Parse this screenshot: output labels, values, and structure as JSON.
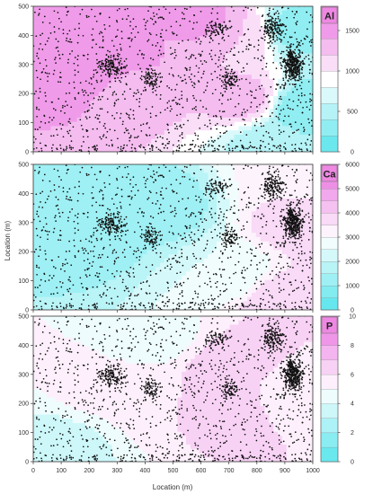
{
  "figure": {
    "ylabel": "Location (m)",
    "xlabel": "Location (m)"
  },
  "chart_data": [
    {
      "type": "heatmap",
      "element": "Al",
      "xlim": [
        0,
        1000
      ],
      "ylim": [
        0,
        500
      ],
      "x_ticks": [
        0,
        100,
        200,
        300,
        400,
        500,
        600,
        700,
        800,
        900,
        1000
      ],
      "y_ticks": [
        0,
        100,
        200,
        300,
        400,
        500
      ],
      "colorbar": {
        "range": [
          0,
          1800
        ],
        "ticks": [
          0,
          500,
          1000,
          1500
        ],
        "levels": [
          0,
          200,
          400,
          600,
          800,
          1000,
          1200,
          1400,
          1600,
          1800
        ]
      },
      "hotspots": [
        {
          "x": 240,
          "y": 300,
          "value": 1600
        },
        {
          "x": 170,
          "y": 430,
          "value": 1450
        },
        {
          "x": 340,
          "y": 220,
          "value": 1350
        },
        {
          "x": 620,
          "y": 450,
          "value": 1450
        },
        {
          "x": 750,
          "y": 180,
          "value": 1300
        },
        {
          "x": 740,
          "y": 400,
          "value": 1200
        },
        {
          "x": 940,
          "y": 420,
          "value": 300
        },
        {
          "x": 970,
          "y": 150,
          "value": 200
        },
        {
          "x": 850,
          "y": 30,
          "value": 500
        }
      ]
    },
    {
      "type": "heatmap",
      "element": "Ca",
      "xlim": [
        0,
        1000
      ],
      "ylim": [
        0,
        500
      ],
      "x_ticks": [
        0,
        100,
        200,
        300,
        400,
        500,
        600,
        700,
        800,
        900,
        1000
      ],
      "y_ticks": [
        0,
        100,
        200,
        300,
        400,
        500
      ],
      "colorbar": {
        "range": [
          0,
          6000
        ],
        "ticks": [
          0,
          1000,
          2000,
          3000,
          4000,
          5000,
          6000
        ],
        "levels": [
          0,
          500,
          1000,
          1500,
          2000,
          2500,
          3000,
          3500,
          4000,
          4500,
          5000,
          5500,
          6000
        ]
      },
      "hotspots": [
        {
          "x": 880,
          "y": 30,
          "value": 4000
        },
        {
          "x": 950,
          "y": 300,
          "value": 3800
        },
        {
          "x": 920,
          "y": 470,
          "value": 3200
        },
        {
          "x": 700,
          "y": 120,
          "value": 2500
        },
        {
          "x": 200,
          "y": 250,
          "value": 1300
        },
        {
          "x": 450,
          "y": 350,
          "value": 1200
        }
      ]
    },
    {
      "type": "heatmap",
      "element": "P",
      "xlim": [
        0,
        1000
      ],
      "ylim": [
        0,
        500
      ],
      "x_ticks": [
        0,
        100,
        200,
        300,
        400,
        500,
        600,
        700,
        800,
        900,
        1000
      ],
      "y_ticks": [
        0,
        100,
        200,
        300,
        400,
        500
      ],
      "colorbar": {
        "range": [
          0,
          10
        ],
        "ticks": [
          0,
          2,
          4,
          6,
          8,
          10
        ],
        "levels": [
          0,
          1,
          2,
          3,
          4,
          5,
          6,
          7,
          8,
          9,
          10
        ]
      },
      "hotspots": [
        {
          "x": 720,
          "y": 300,
          "value": 7.0
        },
        {
          "x": 690,
          "y": 220,
          "value": 6.5
        },
        {
          "x": 400,
          "y": 240,
          "value": 5.8
        },
        {
          "x": 220,
          "y": 250,
          "value": 5.2
        },
        {
          "x": 900,
          "y": 250,
          "value": 5.5
        },
        {
          "x": 420,
          "y": 420,
          "value": 4.5
        },
        {
          "x": 80,
          "y": 60,
          "value": 3.5
        }
      ]
    }
  ]
}
